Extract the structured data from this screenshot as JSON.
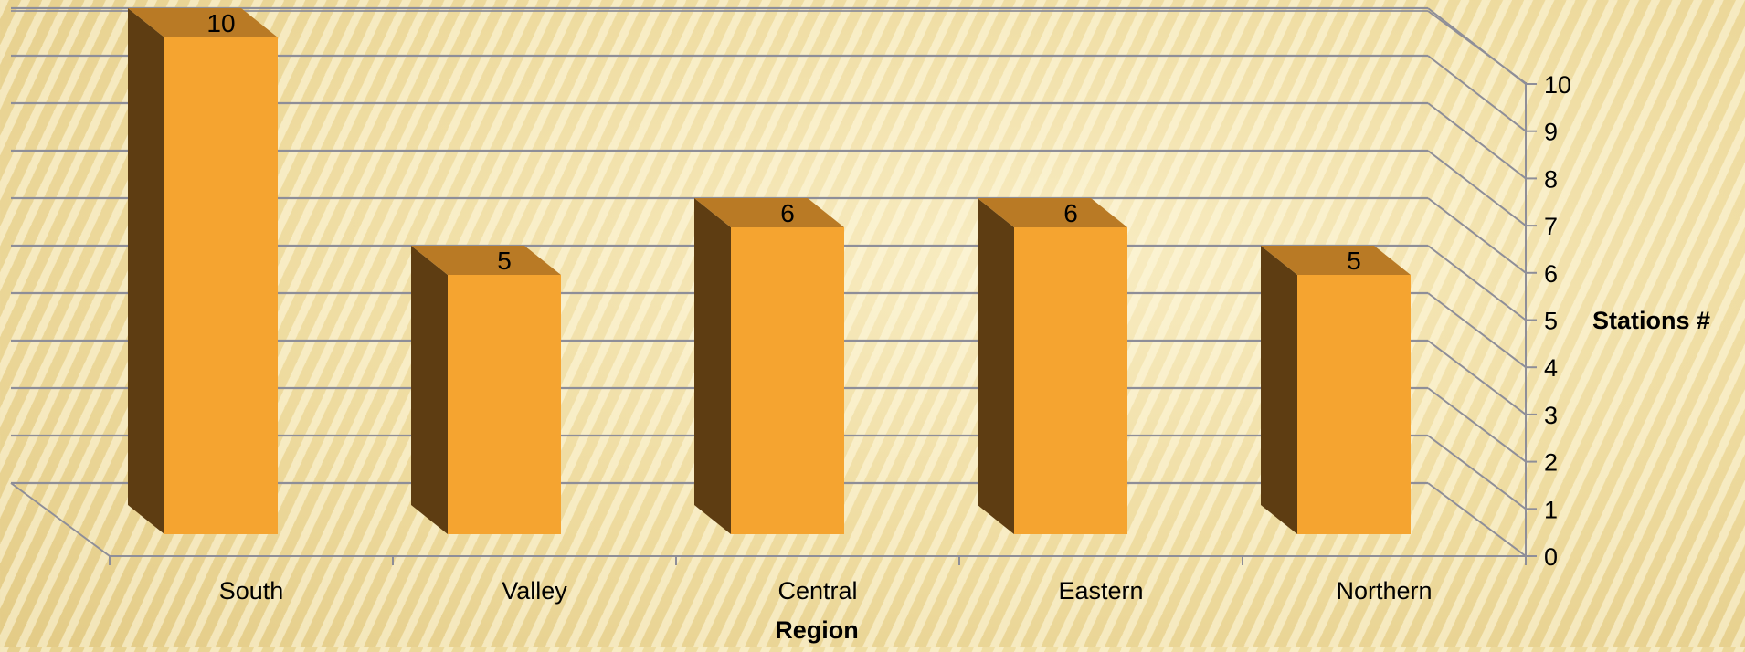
{
  "chart_data": {
    "type": "bar",
    "title": "",
    "xlabel": "Region",
    "ylabel": "Stations #",
    "categories": [
      "South",
      "Valley",
      "Central",
      "Eastern",
      "Northern"
    ],
    "values": [
      10,
      5,
      6,
      6,
      5
    ],
    "data_labels": [
      "10",
      "5",
      "6",
      "6",
      "5"
    ],
    "ylim": [
      0,
      10
    ],
    "yticks": [
      "0",
      "1",
      "2",
      "3",
      "4",
      "5",
      "6",
      "7",
      "8",
      "9",
      "10"
    ],
    "grid": true,
    "style": "3d-column",
    "colors": {
      "bar_front": "#f5a430",
      "bar_side": "#5e3d12",
      "bar_top": "#b97a25",
      "grid": "#8e8e98",
      "text": "#000000"
    }
  }
}
